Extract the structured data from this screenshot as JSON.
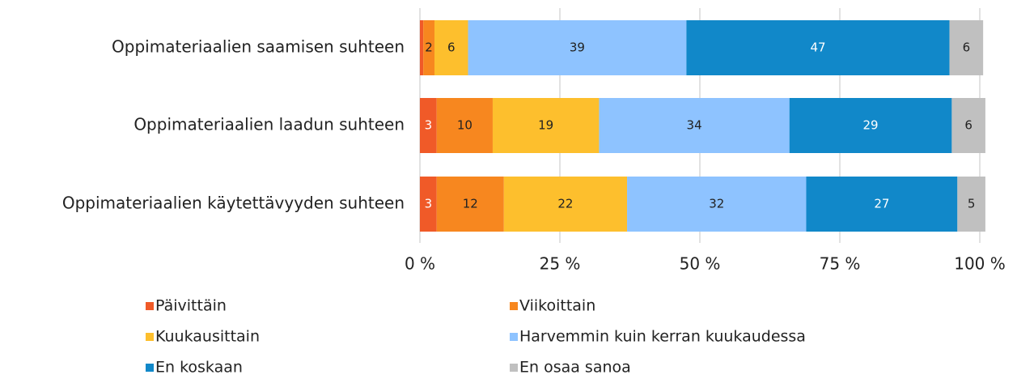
{
  "chart_data": {
    "type": "stacked_barh",
    "categories": [
      "Oppimateriaalien saamisen suhteen",
      "Oppimateriaalien laadun suhteen",
      "Oppimateriaalien käytettävyyden suhteen"
    ],
    "series": [
      {
        "name": "Päivittäin",
        "color": "#f05a28",
        "values": [
          0.6,
          3,
          3
        ],
        "value_labels": [
          null,
          "3",
          "3"
        ]
      },
      {
        "name": "Viikoittain",
        "color": "#f7871f",
        "values": [
          2,
          10,
          12
        ]
      },
      {
        "name": "Kuukausittain",
        "color": "#fdbf2d",
        "values": [
          6,
          19,
          22
        ]
      },
      {
        "name": "Harvemmin kuin kerran kuukaudessa",
        "color": "#8ec3ff",
        "values": [
          39,
          34,
          32
        ]
      },
      {
        "name": "En koskaan",
        "color": "#1188c9",
        "values": [
          47,
          29,
          27
        ]
      },
      {
        "name": "En osaa sanoa",
        "color": "#c0c0c0",
        "values": [
          6,
          6,
          5
        ]
      }
    ],
    "xlim": [
      0,
      100
    ],
    "xticks": [
      {
        "value": 0,
        "label": "0 %"
      },
      {
        "value": 25,
        "label": "25 %"
      },
      {
        "value": 50,
        "label": "50 %"
      },
      {
        "value": 75,
        "label": "75 %"
      },
      {
        "value": 100,
        "label": "100 %"
      }
    ],
    "grid": true
  }
}
